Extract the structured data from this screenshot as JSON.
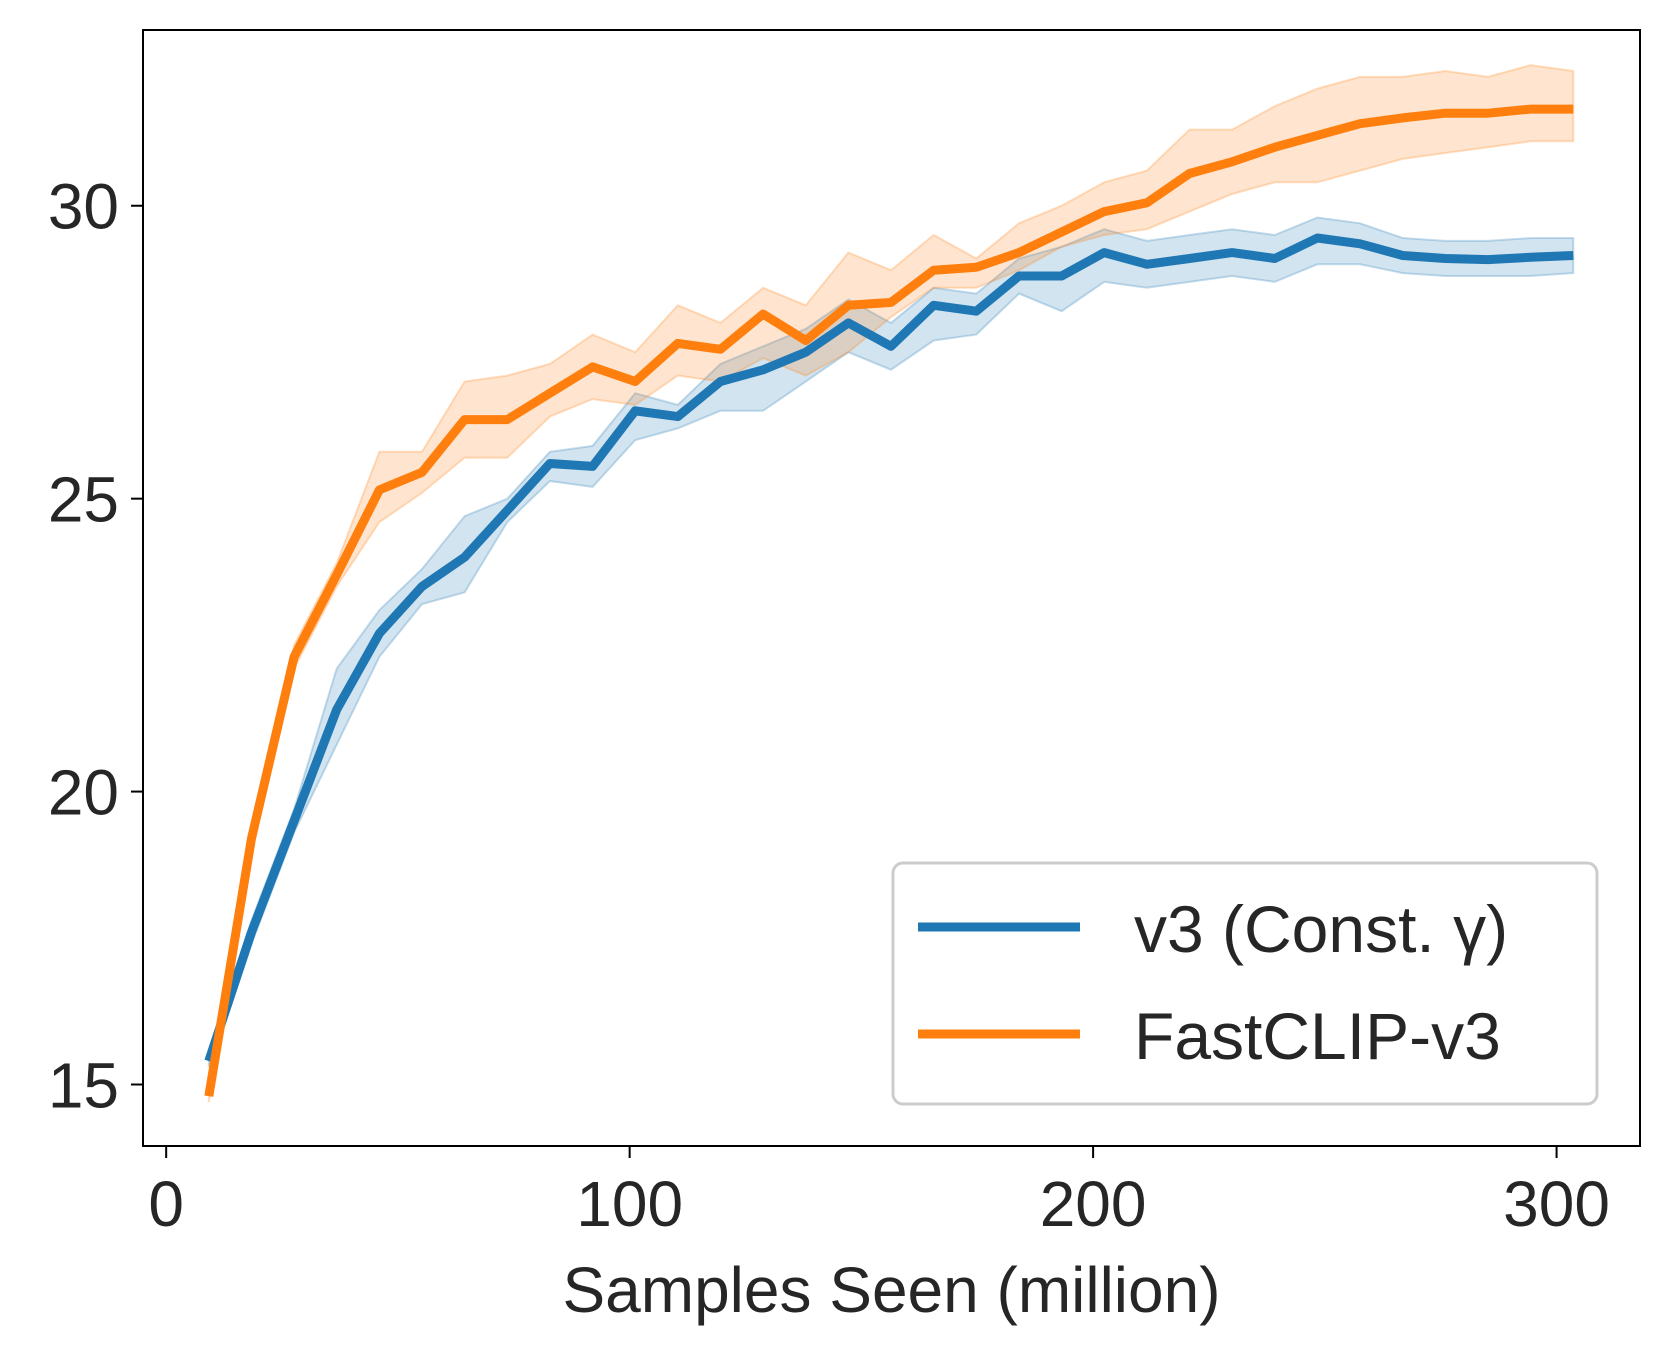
{
  "chart_data": {
    "type": "line",
    "xlabel": "Samples Seen (million)",
    "ylabel": "",
    "xlim": [
      -5,
      318
    ],
    "ylim": [
      13.95,
      33.0
    ],
    "xticks": [
      0,
      100,
      200,
      300
    ],
    "yticks": [
      15,
      20,
      25,
      30
    ],
    "grid": false,
    "legend_position": "lower right",
    "x": [
      9.2,
      18.4,
      27.6,
      36.8,
      46,
      55.2,
      64.4,
      73.6,
      82.8,
      92,
      101.2,
      110.4,
      119.6,
      128.8,
      138,
      147.2,
      156.4,
      165.6,
      174.8,
      184,
      193.2,
      202.4,
      211.6,
      220.8,
      230,
      239.2,
      248.4,
      257.6,
      266.8,
      276,
      285.2,
      294.4,
      303.6
    ],
    "series": [
      {
        "name": "v3 (Const. γ)",
        "color": "#1f77b4",
        "values": [
          15.4,
          17.6,
          19.5,
          21.4,
          22.7,
          23.5,
          24.0,
          24.8,
          25.6,
          25.55,
          26.5,
          26.4,
          27.0,
          27.2,
          27.5,
          28.0,
          27.6,
          28.3,
          28.2,
          28.8,
          28.8,
          29.2,
          29.0,
          29.1,
          29.2,
          29.1,
          29.45,
          29.35,
          29.15,
          29.1,
          29.08,
          29.12,
          29.15
        ],
        "lower": [
          15.3,
          17.4,
          19.3,
          20.8,
          22.3,
          23.2,
          23.4,
          24.6,
          25.3,
          25.2,
          26.0,
          26.2,
          26.5,
          26.5,
          27.0,
          27.5,
          27.2,
          27.7,
          27.8,
          28.5,
          28.2,
          28.7,
          28.6,
          28.7,
          28.8,
          28.7,
          29.0,
          29.0,
          28.85,
          28.8,
          28.8,
          28.8,
          28.85
        ],
        "upper": [
          15.5,
          17.8,
          19.7,
          22.1,
          23.1,
          23.8,
          24.7,
          25.0,
          25.8,
          25.9,
          26.8,
          26.6,
          27.3,
          27.6,
          27.9,
          28.4,
          28.0,
          28.6,
          28.5,
          29.1,
          29.3,
          29.6,
          29.4,
          29.5,
          29.6,
          29.5,
          29.8,
          29.7,
          29.45,
          29.4,
          29.4,
          29.45,
          29.45
        ]
      },
      {
        "name": "FastCLIP-v3",
        "color": "#ff7f0e",
        "values": [
          14.8,
          19.2,
          22.3,
          23.7,
          25.15,
          25.45,
          26.35,
          26.35,
          26.8,
          27.25,
          27.0,
          27.65,
          27.55,
          28.15,
          27.7,
          28.3,
          28.35,
          28.9,
          28.95,
          29.2,
          29.55,
          29.9,
          30.05,
          30.55,
          30.75,
          31.0,
          31.2,
          31.4,
          31.5,
          31.58,
          31.58,
          31.65,
          31.65
        ],
        "lower": [
          14.7,
          19.0,
          22.1,
          23.5,
          24.6,
          25.1,
          25.7,
          25.7,
          26.4,
          26.7,
          26.6,
          27.1,
          27.0,
          27.4,
          27.1,
          27.5,
          28.1,
          28.6,
          28.6,
          28.9,
          29.3,
          29.5,
          29.6,
          29.9,
          30.2,
          30.4,
          30.4,
          30.6,
          30.8,
          30.9,
          31.0,
          31.1,
          31.1
        ],
        "upper": [
          14.9,
          19.4,
          22.5,
          23.9,
          25.8,
          25.8,
          27.0,
          27.1,
          27.3,
          27.8,
          27.5,
          28.3,
          28.0,
          28.6,
          28.3,
          29.2,
          28.9,
          29.5,
          29.1,
          29.7,
          30.0,
          30.4,
          30.6,
          31.3,
          31.3,
          31.7,
          32.0,
          32.2,
          32.2,
          32.3,
          32.2,
          32.4,
          32.3
        ]
      }
    ]
  }
}
